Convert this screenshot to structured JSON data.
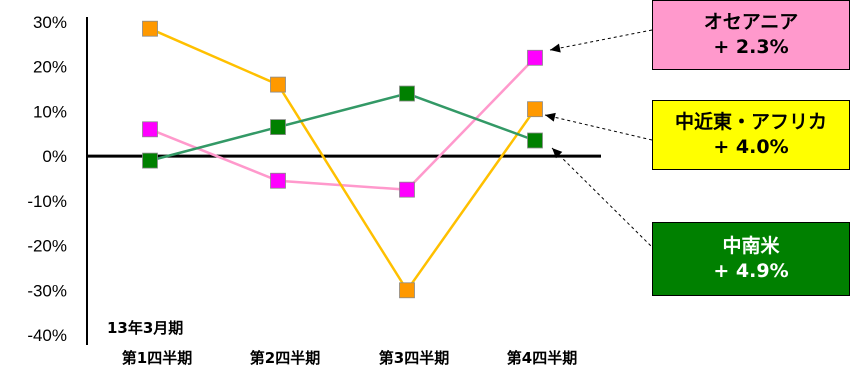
{
  "chart_data": {
    "type": "line",
    "categories": [
      "第1四半期",
      "第2四半期",
      "第3四半期",
      "第4四半期"
    ],
    "category_prefix": "13年3月期",
    "ylim": [
      -40,
      30
    ],
    "yticks": [
      "30%",
      "20%",
      "10%",
      "0%",
      "-10%",
      "-20%",
      "-30%",
      "-40%"
    ],
    "ytick_values": [
      30,
      20,
      10,
      0,
      -10,
      -20,
      -30,
      -40
    ],
    "series": [
      {
        "name": "オセアニア",
        "values": [
          6,
          -5.5,
          -7.5,
          22
        ],
        "color": "#ff00ff",
        "line_color": "#ff99cc"
      },
      {
        "name": "中近東・アフリカ",
        "values": [
          28.5,
          16,
          -30,
          10.5
        ],
        "color": "#ff9900",
        "line_color": "#ffc000"
      },
      {
        "name": "中南米",
        "values": [
          -1,
          6.5,
          14,
          3.5
        ],
        "color": "#008000",
        "line_color": "#339966"
      }
    ]
  },
  "callouts": [
    {
      "title": "オセアニア",
      "value": "+ 2.3%",
      "bg": "#ff99cc",
      "fg": "#000000"
    },
    {
      "title": "中近東・アフリカ",
      "value": "+ 4.0%",
      "bg": "#ffff00",
      "fg": "#000000"
    },
    {
      "title": "中南米",
      "value": "+ 4.9%",
      "bg": "#008000",
      "fg": "#ffffff"
    }
  ]
}
